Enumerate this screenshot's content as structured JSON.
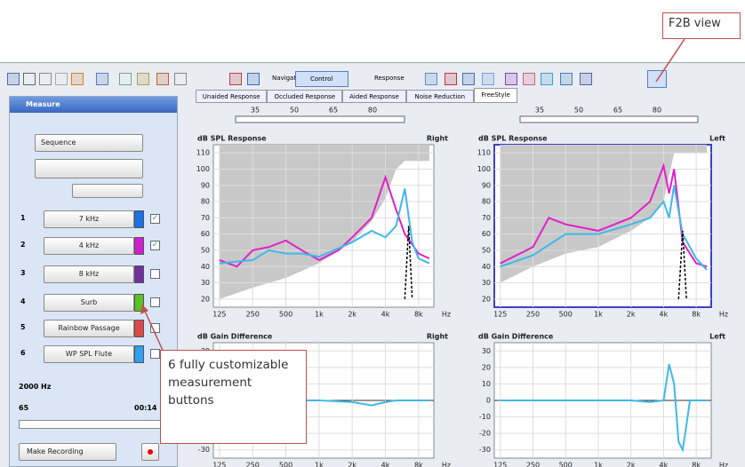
{
  "callouts": {
    "f2b": "F2B view",
    "buttons": "6 fully customizable measurement buttons"
  },
  "toolbar": {
    "navigator": "Navigator",
    "control_panel": "Control Panel",
    "response": "Response"
  },
  "tabs": [
    "Unaided Response",
    "Occluded Response",
    "Aided Response",
    "Noise Reduction",
    "FreeStyle"
  ],
  "active_tab": 4,
  "measure": {
    "title": "Measure",
    "sequence": "Sequence",
    "rows": [
      {
        "number": "1",
        "label": "7 kHz",
        "color": "#1a73e8",
        "checked": true
      },
      {
        "number": "2",
        "label": "4 kHz",
        "color": "#d020d0",
        "checked": true
      },
      {
        "number": "3",
        "label": "8 kHz",
        "color": "#7030a0",
        "checked": false
      },
      {
        "number": "4",
        "label": "Surb",
        "color": "#5cc020",
        "checked": false
      },
      {
        "number": "5",
        "label": "Rainbow Passage",
        "color": "#e04848",
        "checked": false
      },
      {
        "number": "6",
        "label": "WP SPL Flute",
        "color": "#30a0f0",
        "checked": false
      }
    ],
    "frequency": "2000 Hz",
    "level": "65",
    "time": "00:14",
    "record": "Make Recording"
  },
  "level_scale": [
    35,
    50,
    65,
    80
  ],
  "charts": [
    {
      "title": "dB SPL Response",
      "side": "Right",
      "ylim": [
        15,
        115
      ],
      "yticks": [
        20,
        30,
        40,
        50,
        60,
        70,
        80,
        90,
        100,
        110
      ],
      "xlim": [
        110,
        11000
      ],
      "log_x": true,
      "x_unit": "Hz",
      "xticks": [
        125,
        250,
        500,
        {
          "value": 1000,
          "label": "1k"
        },
        {
          "value": 2000,
          "label": "2k"
        },
        {
          "value": 4000,
          "label": "4k"
        },
        {
          "value": 8000,
          "label": "8k"
        }
      ],
      "area": {
        "color": "#c8c8c8",
        "x": [
          125,
          250,
          500,
          1000,
          2000,
          3000,
          4000,
          5000,
          6000,
          10000
        ],
        "y": [
          20,
          27,
          33,
          42,
          55,
          68,
          82,
          100,
          105,
          105
        ]
      },
      "curves": [
        {
          "color": "#e020c8",
          "dashed": false,
          "x": [
            125,
            180,
            250,
            350,
            500,
            700,
            1000,
            1500,
            2000,
            3000,
            4000,
            5000,
            6000,
            8000,
            10000
          ],
          "y": [
            44,
            40,
            50,
            52,
            56,
            50,
            44,
            50,
            58,
            70,
            95,
            75,
            60,
            48,
            45
          ]
        },
        {
          "color": "#40b8e8",
          "dashed": false,
          "x": [
            125,
            250,
            350,
            500,
            700,
            1000,
            2000,
            3000,
            4000,
            5000,
            6000,
            7000,
            8000,
            10000
          ],
          "y": [
            42,
            44,
            50,
            48,
            48,
            46,
            55,
            62,
            58,
            65,
            88,
            55,
            45,
            42
          ]
        },
        {
          "color": "#000000",
          "dashed": true,
          "x": [
            6000,
            6500,
            7000
          ],
          "y": [
            20,
            65,
            20
          ]
        }
      ]
    },
    {
      "title": "dB SPL Response",
      "side": "Left",
      "ylim": [
        15,
        115
      ],
      "yticks": [
        20,
        30,
        40,
        50,
        60,
        70,
        80,
        90,
        100,
        110
      ],
      "xlim": [
        110,
        11000
      ],
      "log_x": true,
      "x_unit": "Hz",
      "xticks": [
        125,
        250,
        500,
        {
          "value": 1000,
          "label": "1k"
        },
        {
          "value": 2000,
          "label": "2k"
        },
        {
          "value": 4000,
          "label": "4k"
        },
        {
          "value": 8000,
          "label": "8k"
        }
      ],
      "area": {
        "color": "#c8c8c8",
        "x": [
          125,
          250,
          500,
          1000,
          2000,
          3000,
          4000,
          5000,
          10000
        ],
        "y": [
          30,
          40,
          48,
          52,
          62,
          70,
          80,
          110,
          110
        ]
      },
      "curves": [
        {
          "color": "#e020c8",
          "dashed": false,
          "x": [
            125,
            250,
            350,
            500,
            1000,
            2000,
            3000,
            4000,
            4500,
            5000,
            6000,
            8000,
            10000
          ],
          "y": [
            42,
            52,
            70,
            66,
            62,
            70,
            80,
            102,
            85,
            100,
            55,
            42,
            40
          ]
        },
        {
          "color": "#40b8e8",
          "dashed": false,
          "x": [
            125,
            250,
            500,
            1000,
            2000,
            3000,
            4000,
            4500,
            5000,
            6000,
            8000,
            10000
          ],
          "y": [
            40,
            47,
            60,
            60,
            66,
            70,
            80,
            70,
            90,
            60,
            45,
            38
          ]
        },
        {
          "color": "#000000",
          "dashed": true,
          "x": [
            5500,
            6000,
            6500
          ],
          "y": [
            20,
            62,
            20
          ]
        }
      ]
    },
    {
      "title": "dB Gain Difference",
      "side": "Right",
      "ylim": [
        -35,
        35
      ],
      "yticks": [
        -30,
        -20,
        -10,
        0,
        10,
        20,
        30
      ],
      "xlim": [
        110,
        11000
      ],
      "log_x": true,
      "x_unit": "Hz",
      "xticks": [
        125,
        250,
        500,
        {
          "value": 1000,
          "label": "1k"
        },
        {
          "value": 2000,
          "label": "2k"
        },
        {
          "value": 4000,
          "label": "4k"
        },
        {
          "value": 8000,
          "label": "8k"
        }
      ],
      "curves": [
        {
          "color": "#40b8e8",
          "dashed": false,
          "x": [
            125,
            500,
            1000,
            2000,
            3000,
            4000,
            5000,
            10000
          ],
          "y": [
            0,
            0,
            0,
            -1,
            -3,
            -1,
            0,
            0
          ]
        }
      ]
    },
    {
      "title": "dB Gain Difference",
      "side": "Left",
      "ylim": [
        -35,
        35
      ],
      "yticks": [
        -30,
        -20,
        -10,
        0,
        10,
        20,
        30
      ],
      "xlim": [
        110,
        11000
      ],
      "log_x": true,
      "x_unit": "Hz",
      "xticks": [
        125,
        250,
        500,
        {
          "value": 1000,
          "label": "1k"
        },
        {
          "value": 2000,
          "label": "2k"
        },
        {
          "value": 4000,
          "label": "4k"
        },
        {
          "value": 8000,
          "label": "8k"
        }
      ],
      "curves": [
        {
          "color": "#40b8e8",
          "dashed": false,
          "x": [
            125,
            250,
            500,
            1000,
            2000,
            3000,
            4000,
            4500,
            5000,
            5500,
            6000,
            6500,
            7000,
            10000
          ],
          "y": [
            0,
            0,
            0,
            0,
            0,
            -1,
            0,
            22,
            10,
            -25,
            -30,
            -15,
            0,
            0
          ]
        }
      ]
    }
  ]
}
